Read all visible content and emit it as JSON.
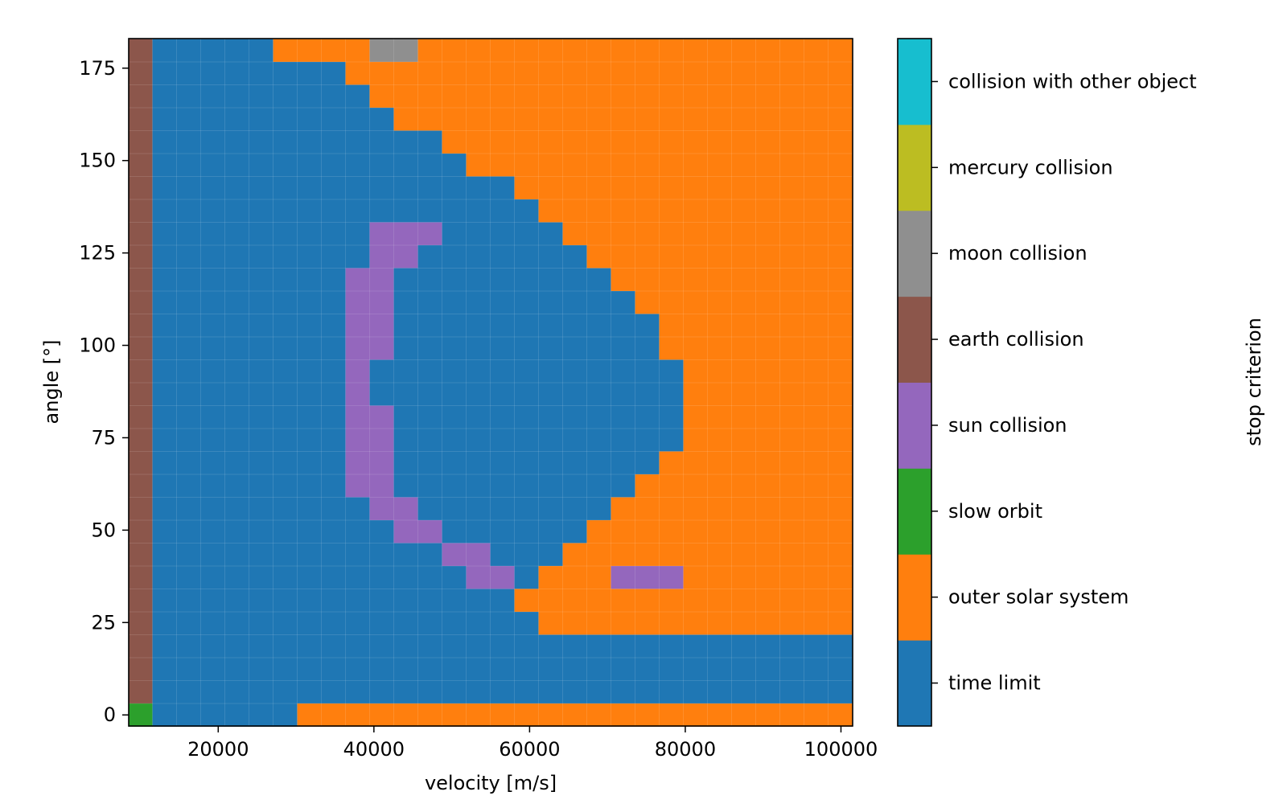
{
  "chart_data": {
    "type": "heatmap",
    "title": "",
    "xlabel": "velocity [m/s]",
    "ylabel": "angle [°]",
    "colorbar_label": "stop criterion",
    "x_range": [
      8500,
      101500
    ],
    "y_range": [
      -3,
      183
    ],
    "x_ticks": [
      20000,
      40000,
      60000,
      80000,
      100000
    ],
    "y_ticks": [
      0,
      25,
      50,
      75,
      100,
      125,
      150,
      175
    ],
    "x_first": 10000,
    "x_step": 3100,
    "y_first": 0,
    "y_step": 6.2,
    "categories": [
      {
        "code": 0,
        "label": "time limit",
        "color": "#1f77b4"
      },
      {
        "code": 1,
        "label": "outer solar system",
        "color": "#ff7f0e"
      },
      {
        "code": 2,
        "label": "slow orbit",
        "color": "#2ca02c"
      },
      {
        "code": 3,
        "label": "sun collision",
        "color": "#9467bd"
      },
      {
        "code": 4,
        "label": "earth collision",
        "color": "#8c564b"
      },
      {
        "code": 5,
        "label": "moon collision",
        "color": "#8f8f8f"
      },
      {
        "code": 6,
        "label": "mercury collision",
        "color": "#bcbd22"
      },
      {
        "code": 7,
        "label": "collision with other object",
        "color": "#17becf"
      }
    ],
    "grid": [
      "400000111155111111111111111111",
      "400000000111111111111111111111",
      "400000000011111111111111111111",
      "400000000001111111111111111111",
      "400000000000011111111111111111",
      "400000000000001111111111111111",
      "400000000000000011111111111111",
      "400000000000000001111111111111",
      "400000000033300000111111111111",
      "400000000033000000011111111111",
      "400000000330000000001111111111",
      "400000000330000000000111111111",
      "400000000330000000000011111111",
      "400000000330000000000011111111",
      "400000000300000000000001111111",
      "400000000300000000000001111111",
      "400000000330000000000001111111",
      "400000000330000000000001111111",
      "400000000330000000000011111111",
      "400000000330000000000111111111",
      "400000000033000000001111111111",
      "400000000003300000011111111111",
      "400000000000033000111111111111",
      "400000000000003301113331111111",
      "400000000000000011111111111111",
      "400000000000000001111111111111",
      "400000000000000000000000000000",
      "400000000000000000000000000000",
      "400000000000000000000000000000",
      "200000011111111111111111111111"
    ]
  }
}
